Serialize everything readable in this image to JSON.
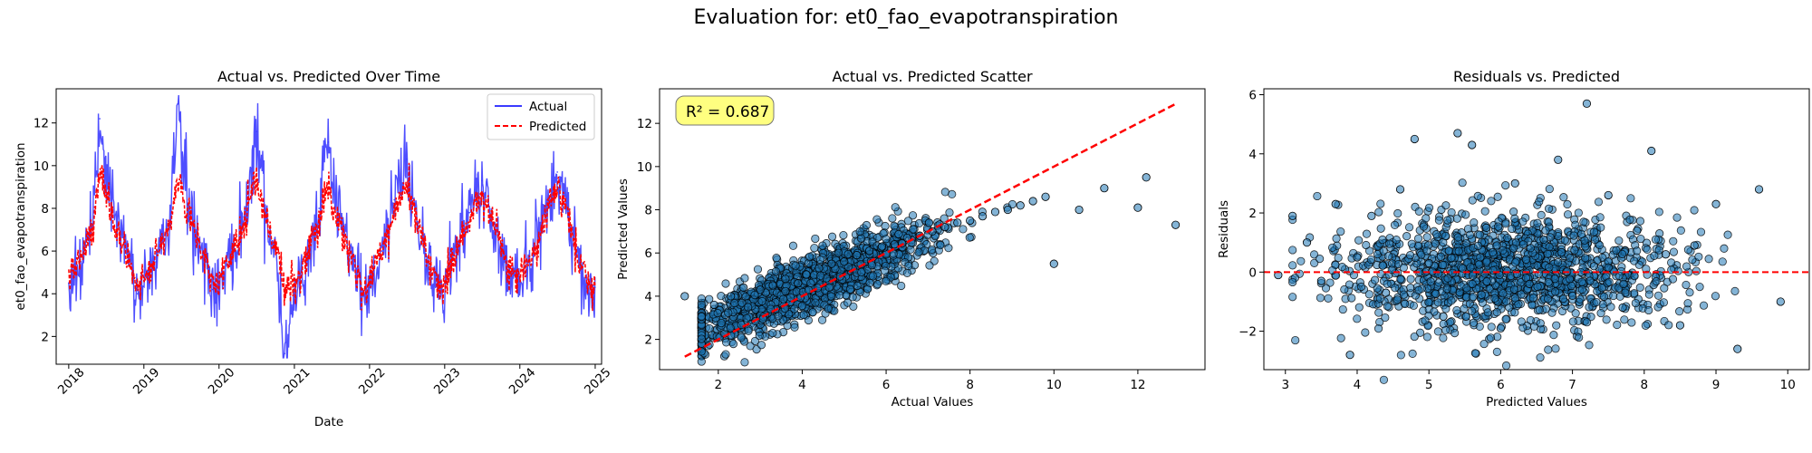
{
  "suptitle": "Evaluation for: et0_fao_evapotranspiration",
  "colors": {
    "actual_line": "#3b3bff",
    "predicted_line": "#ff0000",
    "scatter_fill": "#1f77b4",
    "scatter_edge": "#000000",
    "ideal_line": "#ff0000",
    "zero_line": "#ff0000",
    "annotation_bg": "#ffff80"
  },
  "panels": {
    "timeseries": {
      "title": "Actual vs. Predicted Over Time",
      "xlabel": "Date",
      "ylabel": "et0_fao_evapotranspiration",
      "xticks": [
        "2018",
        "2019",
        "2020",
        "2021",
        "2022",
        "2023",
        "2024",
        "2025"
      ],
      "yticks": [
        "2",
        "4",
        "6",
        "8",
        "10",
        "12"
      ],
      "legend": [
        {
          "label": "Actual",
          "style": "solid"
        },
        {
          "label": "Predicted",
          "style": "dashed"
        }
      ]
    },
    "scatter": {
      "title": "Actual vs. Predicted Scatter",
      "xlabel": "Actual Values",
      "ylabel": "Predicted Values",
      "xticks": [
        "2",
        "4",
        "6",
        "8",
        "10",
        "12"
      ],
      "yticks": [
        "2",
        "4",
        "6",
        "8",
        "10",
        "12"
      ],
      "annotation": "R² = 0.687"
    },
    "residuals": {
      "title": "Residuals vs. Predicted",
      "xlabel": "Predicted Values",
      "ylabel": "Residuals",
      "xticks": [
        "3",
        "4",
        "5",
        "6",
        "7",
        "8",
        "9",
        "10"
      ],
      "yticks": [
        "−2",
        "0",
        "2",
        "4",
        "6"
      ]
    }
  },
  "chart_data": [
    {
      "type": "line",
      "title": "Actual vs. Predicted Over Time",
      "xlabel": "Date",
      "ylabel": "et0_fao_evapotranspiration",
      "xlim": [
        "2017-11-01",
        "2025-02-01"
      ],
      "ylim": [
        0.7,
        13.6
      ],
      "legend_position": "top-right",
      "grid": false,
      "series": [
        {
          "name": "Actual",
          "x": [
            "2018-01-01",
            "2018-03-01",
            "2018-05-01",
            "2018-06-01",
            "2018-08-01",
            "2018-10-01",
            "2018-12-01",
            "2019-01-01",
            "2019-03-01",
            "2019-05-01",
            "2019-06-15",
            "2019-08-01",
            "2019-10-01",
            "2019-12-01",
            "2020-01-01",
            "2020-03-01",
            "2020-05-01",
            "2020-07-01",
            "2020-08-15",
            "2020-10-01",
            "2020-11-15",
            "2021-01-01",
            "2021-03-01",
            "2021-05-01",
            "2021-06-15",
            "2021-08-01",
            "2021-10-01",
            "2021-12-01",
            "2022-01-01",
            "2022-03-01",
            "2022-05-01",
            "2022-07-01",
            "2022-08-15",
            "2022-10-01",
            "2022-12-01",
            "2023-01-01",
            "2023-03-01",
            "2023-05-01",
            "2023-07-01",
            "2023-09-01",
            "2023-11-01",
            "2024-01-01",
            "2024-03-01",
            "2024-05-01",
            "2024-07-01",
            "2024-08-15",
            "2024-10-01",
            "2024-12-01",
            "2024-12-31"
          ],
          "values": [
            4.5,
            5.5,
            7.2,
            12.2,
            7.8,
            6.2,
            4.0,
            4.6,
            5.5,
            7.0,
            12.9,
            8.2,
            6.4,
            4.2,
            4.4,
            5.8,
            7.6,
            11.6,
            7.8,
            6.0,
            1.2,
            4.2,
            5.4,
            8.0,
            11.1,
            7.4,
            6.0,
            3.9,
            4.3,
            6.0,
            8.4,
            10.3,
            7.6,
            5.9,
            3.9,
            4.5,
            6.2,
            7.8,
            9.3,
            7.0,
            5.2,
            4.6,
            5.8,
            7.5,
            9.7,
            8.0,
            6.0,
            4.0,
            4.3
          ]
        },
        {
          "name": "Predicted",
          "x": [
            "2018-01-01",
            "2018-03-01",
            "2018-05-01",
            "2018-06-01",
            "2018-08-01",
            "2018-10-01",
            "2018-12-01",
            "2019-01-01",
            "2019-03-01",
            "2019-05-01",
            "2019-06-15",
            "2019-08-01",
            "2019-10-01",
            "2019-12-01",
            "2020-01-01",
            "2020-03-01",
            "2020-05-01",
            "2020-07-01",
            "2020-08-15",
            "2020-10-01",
            "2020-11-15",
            "2021-01-01",
            "2021-03-01",
            "2021-05-01",
            "2021-06-15",
            "2021-08-01",
            "2021-10-01",
            "2021-12-01",
            "2022-01-01",
            "2022-03-01",
            "2022-05-01",
            "2022-07-01",
            "2022-08-15",
            "2022-10-01",
            "2022-12-01",
            "2023-01-01",
            "2023-03-01",
            "2023-05-01",
            "2023-07-01",
            "2023-09-01",
            "2023-11-01",
            "2024-01-01",
            "2024-03-01",
            "2024-05-01",
            "2024-07-01",
            "2024-08-15",
            "2024-10-01",
            "2024-12-01",
            "2024-12-31"
          ],
          "values": [
            4.8,
            5.6,
            7.1,
            9.8,
            7.6,
            6.1,
            4.4,
            4.8,
            5.6,
            6.9,
            9.5,
            7.9,
            6.3,
            4.6,
            4.7,
            5.7,
            7.3,
            9.4,
            7.6,
            6.0,
            4.5,
            4.5,
            5.5,
            7.5,
            9.0,
            7.3,
            5.9,
            4.3,
            4.6,
            6.0,
            7.8,
            9.1,
            7.5,
            5.9,
            4.3,
            4.7,
            6.0,
            7.5,
            8.8,
            7.0,
            5.3,
            4.8,
            5.8,
            7.3,
            9.0,
            7.8,
            6.0,
            4.4,
            4.5
          ]
        }
      ]
    },
    {
      "type": "scatter",
      "title": "Actual vs. Predicted Scatter",
      "xlabel": "Actual Values",
      "ylabel": "Predicted Values",
      "xlim": [
        0.6,
        13.6
      ],
      "ylim": [
        0.6,
        13.6
      ],
      "annotation": "R² = 0.687",
      "reference_line": {
        "from": [
          1.2,
          1.2
        ],
        "to": [
          12.9,
          12.9
        ],
        "style": "dashed"
      },
      "series": [
        {
          "x": [
            1.2,
            1.9,
            2.3,
            2.6,
            3.0,
            3.3,
            3.6,
            3.9,
            4.1,
            4.4,
            4.7,
            5.0,
            5.3,
            5.6,
            5.9,
            6.2,
            6.5,
            6.8,
            7.1,
            7.4,
            7.7,
            8.0,
            8.3,
            8.6,
            8.9,
            9.2,
            9.5,
            9.8,
            10.0,
            10.6,
            11.2,
            12.0,
            12.2,
            12.9
          ],
          "y": [
            4.0,
            3.6,
            4.0,
            4.4,
            4.3,
            4.5,
            4.8,
            4.6,
            5.0,
            5.3,
            5.5,
            5.6,
            5.9,
            6.1,
            6.3,
            6.4,
            6.7,
            6.8,
            7.0,
            7.2,
            7.4,
            7.5,
            7.7,
            7.9,
            8.0,
            8.2,
            8.4,
            8.6,
            5.5,
            8.0,
            9.0,
            8.1,
            9.5,
            7.3
          ]
        }
      ]
    },
    {
      "type": "scatter",
      "title": "Residuals vs. Predicted",
      "xlabel": "Predicted Values",
      "ylabel": "Residuals",
      "xlim": [
        2.7,
        10.3
      ],
      "ylim": [
        -3.3,
        6.2
      ],
      "reference_line": {
        "y": 0,
        "style": "dashed"
      },
      "series": [
        {
          "x": [
            2.9,
            3.1,
            3.3,
            3.5,
            3.7,
            3.9,
            4.0,
            4.2,
            4.4,
            4.6,
            4.8,
            5.0,
            5.2,
            5.4,
            5.6,
            5.8,
            6.0,
            6.2,
            6.4,
            6.6,
            6.8,
            7.0,
            7.2,
            7.3,
            7.5,
            7.7,
            7.9,
            8.1,
            8.3,
            8.5,
            8.7,
            9.0,
            9.3,
            9.6,
            9.9
          ],
          "y": [
            -0.1,
            1.9,
            1.0,
            -0.3,
            2.3,
            -2.8,
            0.5,
            1.9,
            -0.7,
            2.8,
            4.5,
            0.3,
            -1.5,
            4.7,
            4.3,
            1.5,
            -1.9,
            3.0,
            -0.4,
            1.1,
            3.8,
            -0.8,
            5.7,
            0.2,
            2.6,
            -1.2,
            1.4,
            4.1,
            0.6,
            -1.8,
            0.9,
            2.3,
            -2.6,
            2.8,
            -1.0
          ]
        }
      ]
    }
  ]
}
